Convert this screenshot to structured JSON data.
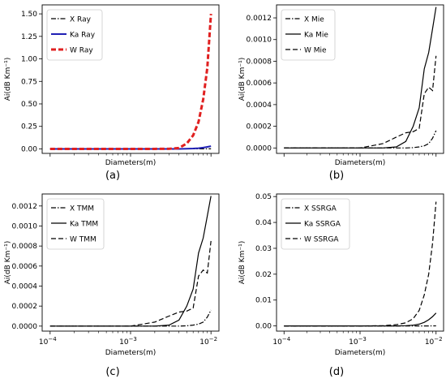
{
  "figure": {
    "panel_labels": [
      "(a)",
      "(b)",
      "(c)",
      "(d)"
    ]
  },
  "chart_data": [
    {
      "type": "line",
      "panel": "(a)",
      "xlabel": "Diameters(m)",
      "ylabel": "Ai(dB Km⁻¹)",
      "xscale": "log",
      "xlim": [
        0.0001,
        0.01
      ],
      "x_tick_labels_shown": false,
      "ylim": [
        -0.05,
        1.6
      ],
      "yticks": [
        "0.00",
        "0.25",
        "0.50",
        "0.75",
        "1.00",
        "1.25",
        "1.50"
      ],
      "legend": "top-left",
      "x": [
        0.0001,
        0.001,
        0.002,
        0.003,
        0.004,
        0.005,
        0.006,
        0.007,
        0.008,
        0.009,
        0.01
      ],
      "series": [
        {
          "name": "X Ray",
          "color": "#000000",
          "dash": "dashdot",
          "values": [
            0,
            0,
            0,
            0,
            0,
            0,
            0,
            0,
            0,
            0.0005,
            0.001
          ]
        },
        {
          "name": "Ka Ray",
          "color": "#1f1fb4",
          "dash": "solid",
          "values": [
            0,
            0,
            0,
            0,
            0,
            0.002,
            0.004,
            0.008,
            0.014,
            0.022,
            0.03
          ]
        },
        {
          "name": "W Ray",
          "color": "#e02020",
          "dash": "dashed",
          "values": [
            0,
            0,
            0,
            0.001,
            0.01,
            0.06,
            0.15,
            0.3,
            0.55,
            0.9,
            1.5
          ]
        }
      ]
    },
    {
      "type": "line",
      "panel": "(b)",
      "xlabel": "Diameters(m)",
      "ylabel": "Ai(dB Km⁻¹)",
      "xscale": "log",
      "xlim": [
        0.0001,
        0.01
      ],
      "x_tick_labels_shown": false,
      "ylim": [
        -5e-05,
        0.00132
      ],
      "yticks": [
        "0.0000",
        "0.0002",
        "0.0004",
        "0.0006",
        "0.0008",
        "0.0010",
        "0.0012"
      ],
      "legend": "top-left",
      "x": [
        0.0001,
        0.001,
        0.002,
        0.003,
        0.004,
        0.005,
        0.006,
        0.007,
        0.008,
        0.009,
        0.01
      ],
      "series": [
        {
          "name": "X Mie",
          "color": "#000000",
          "dash": "dashdot",
          "values": [
            0,
            0,
            0,
            0,
            0,
            3e-06,
            1e-05,
            2e-05,
            4e-05,
            9e-05,
            0.00016
          ]
        },
        {
          "name": "Ka Mie",
          "color": "#000000",
          "dash": "solid",
          "values": [
            0,
            0,
            0,
            1e-05,
            6e-05,
            0.0002,
            0.00037,
            0.00073,
            0.00088,
            0.0011,
            0.0013
          ]
        },
        {
          "name": "W Mie",
          "color": "#000000",
          "dash": "dashed",
          "values": [
            0,
            0,
            4e-05,
            0.0001,
            0.00014,
            0.00015,
            0.00018,
            0.0005,
            0.00056,
            0.00053,
            0.00085
          ]
        }
      ]
    },
    {
      "type": "line",
      "panel": "(c)",
      "xlabel": "Diameters(m)",
      "ylabel": "Ai(dB Km⁻¹)",
      "xscale": "log",
      "xlim": [
        0.0001,
        0.01
      ],
      "xticks": [
        0.0001,
        0.001,
        0.01
      ],
      "ylim": [
        -5e-05,
        0.00132
      ],
      "yticks": [
        "0.0000",
        "0.0002",
        "0.0004",
        "0.0006",
        "0.0008",
        "0.0010",
        "0.0012"
      ],
      "legend": "top-left",
      "x": [
        0.0001,
        0.001,
        0.002,
        0.003,
        0.004,
        0.005,
        0.006,
        0.007,
        0.008,
        0.009,
        0.01
      ],
      "series": [
        {
          "name": "X TMM",
          "color": "#000000",
          "dash": "dashdot",
          "values": [
            0,
            0,
            0,
            0,
            0,
            3e-06,
            1e-05,
            2e-05,
            4e-05,
            9e-05,
            0.00016
          ]
        },
        {
          "name": "Ka TMM",
          "color": "#000000",
          "dash": "solid",
          "values": [
            0,
            0,
            0,
            1e-05,
            6e-05,
            0.0002,
            0.00037,
            0.00073,
            0.00088,
            0.0011,
            0.0013
          ]
        },
        {
          "name": "W TMM",
          "color": "#000000",
          "dash": "dashed",
          "values": [
            0,
            0,
            4e-05,
            0.0001,
            0.00014,
            0.00015,
            0.00018,
            0.0005,
            0.00056,
            0.00053,
            0.00085
          ]
        }
      ]
    },
    {
      "type": "line",
      "panel": "(d)",
      "xlabel": "Diameters(m)",
      "ylabel": "Ai(dB Km⁻¹)",
      "xscale": "log",
      "xlim": [
        0.0001,
        0.01
      ],
      "xticks": [
        0.0001,
        0.001,
        0.01
      ],
      "ylim": [
        -0.002,
        0.051
      ],
      "yticks": [
        "0.00",
        "0.01",
        "0.02",
        "0.03",
        "0.04",
        "0.05"
      ],
      "legend": "top-left",
      "x": [
        0.0001,
        0.001,
        0.002,
        0.003,
        0.004,
        0.005,
        0.006,
        0.007,
        0.008,
        0.009,
        0.01
      ],
      "series": [
        {
          "name": "X SSRGA",
          "color": "#000000",
          "dash": "dashdot",
          "values": [
            0,
            0,
            0,
            0,
            0,
            0,
            0,
            0,
            1e-05,
            2e-05,
            3e-05
          ]
        },
        {
          "name": "Ka SSRGA",
          "color": "#000000",
          "dash": "solid",
          "values": [
            0,
            0,
            0,
            0,
            0.0001,
            0.0003,
            0.0007,
            0.0014,
            0.0024,
            0.0036,
            0.005
          ]
        },
        {
          "name": "W SSRGA",
          "color": "#000000",
          "dash": "dashed",
          "values": [
            0,
            0,
            0.0001,
            0.0005,
            0.0012,
            0.0028,
            0.006,
            0.012,
            0.02,
            0.032,
            0.048
          ]
        }
      ]
    }
  ]
}
